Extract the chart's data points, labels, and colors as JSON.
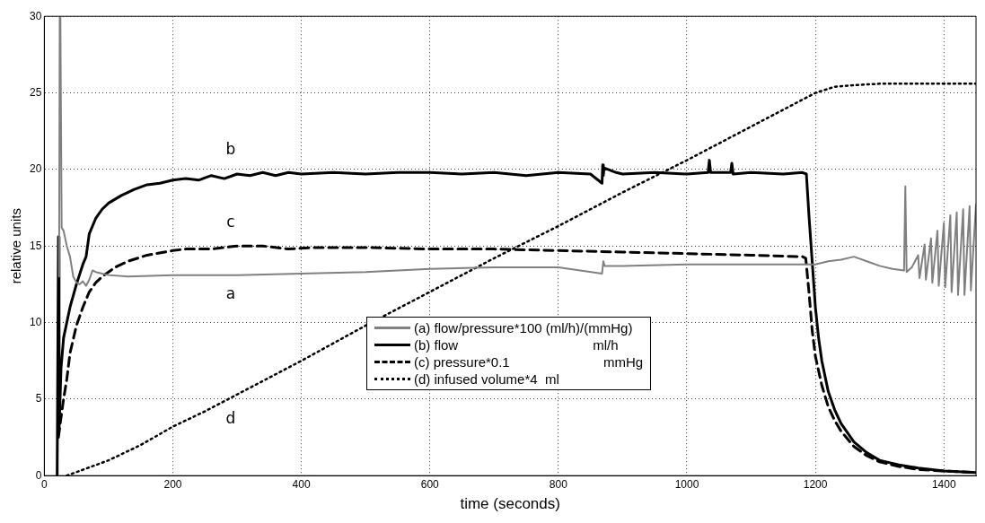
{
  "chart_data": {
    "type": "line",
    "xlabel": "time (seconds)",
    "ylabel": "relative units",
    "xlim": [
      0,
      1450
    ],
    "ylim": [
      0,
      30
    ],
    "xticks": [
      0,
      200,
      400,
      600,
      800,
      1000,
      1200,
      1400
    ],
    "yticks": [
      0,
      5,
      10,
      15,
      20,
      25,
      30
    ],
    "grid": true,
    "legend": "bottom",
    "marker": "none",
    "annotations": [
      "a",
      "b",
      "c",
      "d"
    ],
    "series": [
      {
        "name": "(a) flow/pressure*100 (ml/h)/(mmHg)",
        "color": "#808080",
        "line_style": "solid",
        "x": [
          23,
          24,
          25,
          27,
          30,
          35,
          40,
          45,
          50,
          55,
          60,
          65,
          70,
          75,
          80,
          90,
          100,
          130,
          200,
          300,
          400,
          500,
          600,
          700,
          800,
          868,
          870,
          872,
          900,
          1000,
          1100,
          1180,
          1200,
          1220,
          1240,
          1260,
          1280,
          1300,
          1320,
          1338,
          1340,
          1342,
          1350,
          1360,
          1362,
          1370,
          1372,
          1380,
          1382,
          1390,
          1392,
          1400,
          1402,
          1410,
          1412,
          1420,
          1422,
          1430,
          1432,
          1440,
          1442,
          1450
        ],
        "values": [
          13,
          30,
          30,
          16.2,
          16,
          15,
          14.3,
          13,
          12.6,
          12.5,
          12.7,
          12.4,
          12.8,
          13.4,
          13.3,
          13.2,
          13.1,
          13,
          13.1,
          13.1,
          13.2,
          13.3,
          13.5,
          13.6,
          13.6,
          13.2,
          14,
          13.7,
          13.7,
          13.8,
          13.8,
          13.8,
          13.8,
          14,
          14.1,
          14.3,
          14,
          13.7,
          13.5,
          13.4,
          18.9,
          13.3,
          13.6,
          14.4,
          12.9,
          15.1,
          12.8,
          15.5,
          12.6,
          16,
          12.4,
          16.5,
          12.3,
          17,
          12,
          17.2,
          11.8,
          17.4,
          11.8,
          17.6,
          12.1,
          17.7
        ]
      },
      {
        "name": "(b) flow                                    ml/h",
        "color": "#000000",
        "line_style": "solid",
        "x": [
          20,
          22,
          23,
          26,
          30,
          35,
          40,
          50,
          60,
          65,
          70,
          75,
          80,
          90,
          100,
          120,
          140,
          160,
          180,
          200,
          220,
          240,
          260,
          280,
          300,
          320,
          340,
          360,
          380,
          400,
          450,
          500,
          550,
          600,
          650,
          700,
          750,
          800,
          850,
          868,
          869,
          870,
          871,
          890,
          900,
          950,
          1000,
          1033,
          1035,
          1037,
          1068,
          1070,
          1072,
          1100,
          1150,
          1180,
          1186,
          1190,
          1195,
          1200,
          1205,
          1210,
          1220,
          1230,
          1240,
          1260,
          1280,
          1300,
          1330,
          1360,
          1400,
          1450
        ],
        "values": [
          0,
          15.6,
          3,
          7,
          9,
          10,
          11,
          12.5,
          13.8,
          14.3,
          15.8,
          16.3,
          16.8,
          17.4,
          17.8,
          18.3,
          18.7,
          19,
          19.1,
          19.3,
          19.4,
          19.3,
          19.6,
          19.4,
          19.7,
          19.6,
          19.8,
          19.6,
          19.8,
          19.7,
          19.8,
          19.7,
          19.8,
          19.8,
          19.7,
          19.8,
          19.6,
          19.8,
          19.7,
          19.1,
          20.3,
          19.6,
          20.1,
          19.8,
          19.7,
          19.8,
          19.7,
          19.8,
          20.6,
          19.8,
          19.8,
          20.4,
          19.7,
          19.8,
          19.7,
          19.8,
          19.7,
          17,
          14,
          11,
          9,
          7.5,
          5.5,
          4.3,
          3.4,
          2.2,
          1.5,
          1,
          0.7,
          0.5,
          0.3,
          0.2
        ]
      },
      {
        "name": "(c) pressure*0.1                         mmHg",
        "color": "#000000",
        "line_style": "dashed",
        "x": [
          22,
          26,
          30,
          35,
          40,
          50,
          60,
          70,
          80,
          90,
          100,
          110,
          130,
          160,
          200,
          220,
          260,
          300,
          340,
          380,
          420,
          500,
          600,
          700,
          800,
          900,
          1000,
          1100,
          1180,
          1185,
          1190,
          1195,
          1200,
          1210,
          1220,
          1230,
          1240,
          1260,
          1280,
          1300,
          1330,
          1360,
          1400,
          1450
        ],
        "values": [
          2.5,
          3.8,
          5,
          6.3,
          8,
          9.8,
          11,
          12,
          12.6,
          13,
          13.3,
          13.6,
          14,
          14.4,
          14.7,
          14.8,
          14.8,
          15,
          15,
          14.8,
          14.9,
          14.9,
          14.8,
          14.8,
          14.7,
          14.6,
          14.5,
          14.4,
          14.3,
          14.2,
          12,
          9.5,
          7.8,
          5.9,
          4.5,
          3.6,
          2.9,
          1.9,
          1.3,
          0.9,
          0.6,
          0.4,
          0.3,
          0.2
        ]
      },
      {
        "name": "(d) infused volume*4  ml",
        "color": "#000000",
        "line_style": "dotted",
        "x": [
          35,
          100,
          150,
          200,
          250,
          300,
          400,
          500,
          600,
          700,
          800,
          900,
          1000,
          1100,
          1150,
          1200,
          1230,
          1260,
          1300,
          1350,
          1400,
          1450
        ],
        "values": [
          0,
          1,
          2,
          3.2,
          4.2,
          5.3,
          7.5,
          9.8,
          12,
          14.2,
          16.3,
          18.5,
          20.6,
          22.8,
          23.9,
          25,
          25.4,
          25.5,
          25.6,
          25.6,
          25.6,
          25.6
        ]
      }
    ]
  }
}
